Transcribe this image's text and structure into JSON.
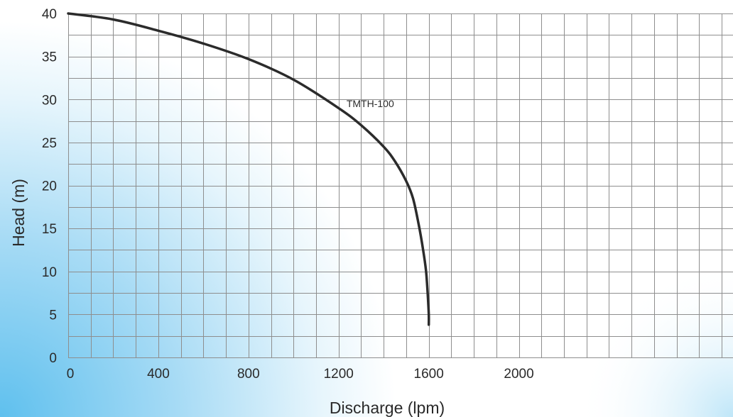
{
  "chart_data": {
    "type": "line",
    "xlabel": "Discharge (lpm)",
    "ylabel": "Head  (m)",
    "xlim": [
      0,
      2950
    ],
    "ylim": [
      0,
      40
    ],
    "x_ticks": [
      0,
      400,
      800,
      1200,
      1600,
      2000
    ],
    "y_ticks": [
      0,
      5,
      10,
      15,
      20,
      25,
      30,
      35,
      40
    ],
    "grid": true,
    "colors": {
      "line": "#2b2b2b",
      "grid": "#8e8e8e",
      "background_gradient": "#6ec7ef"
    },
    "series": [
      {
        "name": "TMTH-100",
        "x": [
          0,
          200,
          400,
          600,
          800,
          1000,
          1200,
          1300,
          1400,
          1450,
          1500,
          1530,
          1555,
          1575,
          1588,
          1595,
          1600,
          1600
        ],
        "y": [
          40,
          39.3,
          38,
          36.5,
          34.7,
          32.3,
          29,
          27,
          24.5,
          22.8,
          20.5,
          18.5,
          15.5,
          12.5,
          10,
          7.5,
          5,
          3.8
        ]
      }
    ]
  }
}
